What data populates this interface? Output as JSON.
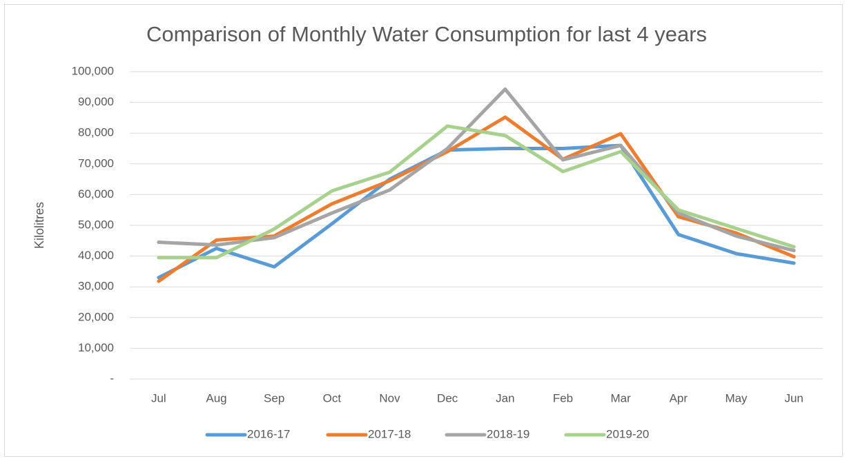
{
  "chart_data": {
    "type": "line",
    "title": "Comparison of Monthly Water Consumption for last 4 years",
    "y_label": "Kilolitres",
    "categories": [
      "Jul",
      "Aug",
      "Sep",
      "Oct",
      "Nov",
      "Dec",
      "Jan",
      "Feb",
      "Mar",
      "Apr",
      "May",
      "Jun"
    ],
    "series": [
      {
        "name": "2016-17",
        "color": "#5b9bd5",
        "values": [
          33000,
          42500,
          36500,
          50500,
          65000,
          74500,
          75000,
          75000,
          76000,
          47000,
          40800,
          37700
        ]
      },
      {
        "name": "2017-18",
        "color": "#ed7d31",
        "values": [
          31800,
          45200,
          46500,
          57000,
          64500,
          74000,
          85200,
          71500,
          79800,
          52800,
          47500,
          39800
        ]
      },
      {
        "name": "2018-19",
        "color": "#a5a5a5",
        "values": [
          44500,
          43600,
          46000,
          54000,
          61500,
          75000,
          94300,
          71300,
          76000,
          54000,
          46500,
          41800
        ]
      },
      {
        "name": "2019-20",
        "color": "#a9d18e",
        "values": [
          39500,
          39500,
          48800,
          61200,
          67300,
          82300,
          79200,
          67500,
          74000,
          55000,
          49000,
          43000
        ]
      }
    ],
    "ylim": [
      0,
      100000
    ],
    "yticks": [
      {
        "value": 0,
        "label": "-"
      },
      {
        "value": 10000,
        "label": "10,000"
      },
      {
        "value": 20000,
        "label": "20,000"
      },
      {
        "value": 30000,
        "label": "30,000"
      },
      {
        "value": 40000,
        "label": "40,000"
      },
      {
        "value": 50000,
        "label": "50,000"
      },
      {
        "value": 60000,
        "label": "60,000"
      },
      {
        "value": 70000,
        "label": "70,000"
      },
      {
        "value": 80000,
        "label": "80,000"
      },
      {
        "value": 90000,
        "label": "90,000"
      },
      {
        "value": 100000,
        "label": "100,000"
      }
    ],
    "grid": true,
    "legend": "bottom"
  }
}
